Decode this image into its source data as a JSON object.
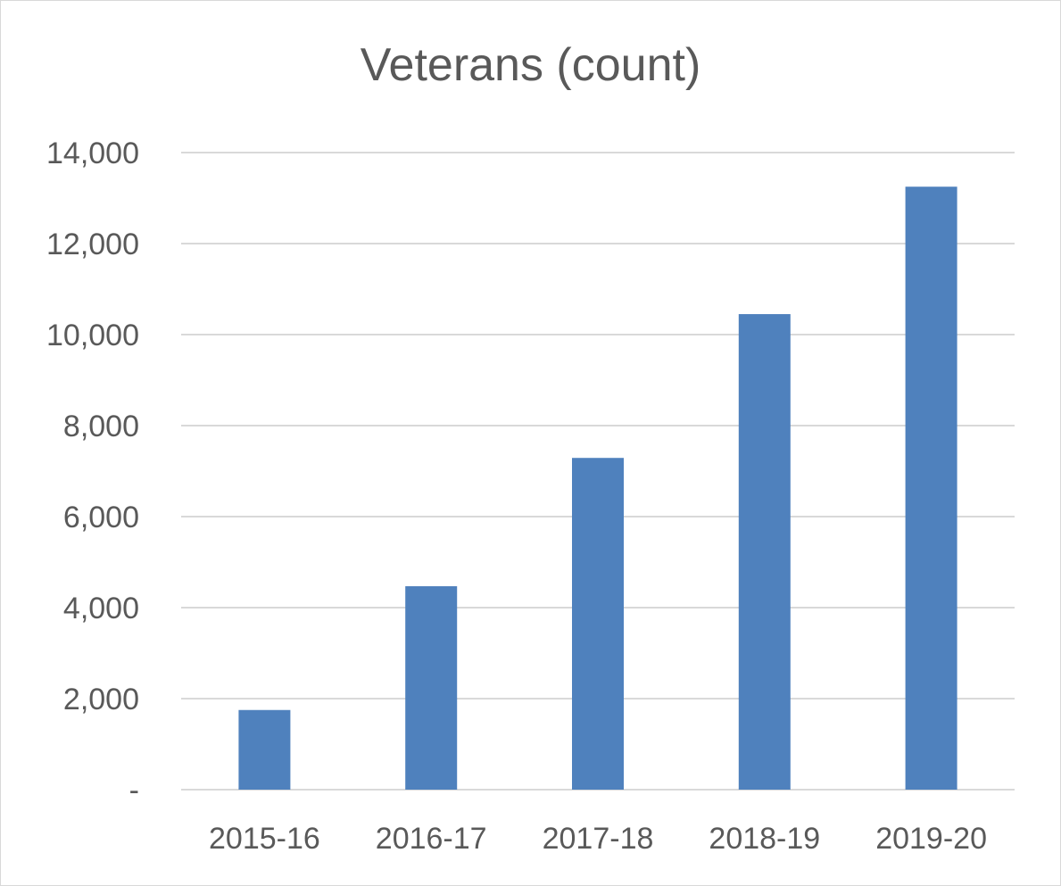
{
  "chart_data": {
    "type": "bar",
    "title": "Veterans (count)",
    "xlabel": "",
    "ylabel": "",
    "categories": [
      "2015-16",
      "2016-17",
      "2017-18",
      "2018-19",
      "2019-20"
    ],
    "values": [
      1750,
      4470,
      7290,
      10450,
      13250
    ],
    "ylim": [
      0,
      14000
    ],
    "yticks": [
      0,
      2000,
      4000,
      6000,
      8000,
      10000,
      12000,
      14000
    ],
    "ytick_labels": [
      "-",
      "2,000",
      "4,000",
      "6,000",
      "8,000",
      "10,000",
      "12,000",
      "14,000"
    ],
    "grid": true,
    "legend": "none",
    "bar_color": "#4f81bd",
    "grid_color": "#d9d9d9",
    "text_color": "#595959"
  }
}
